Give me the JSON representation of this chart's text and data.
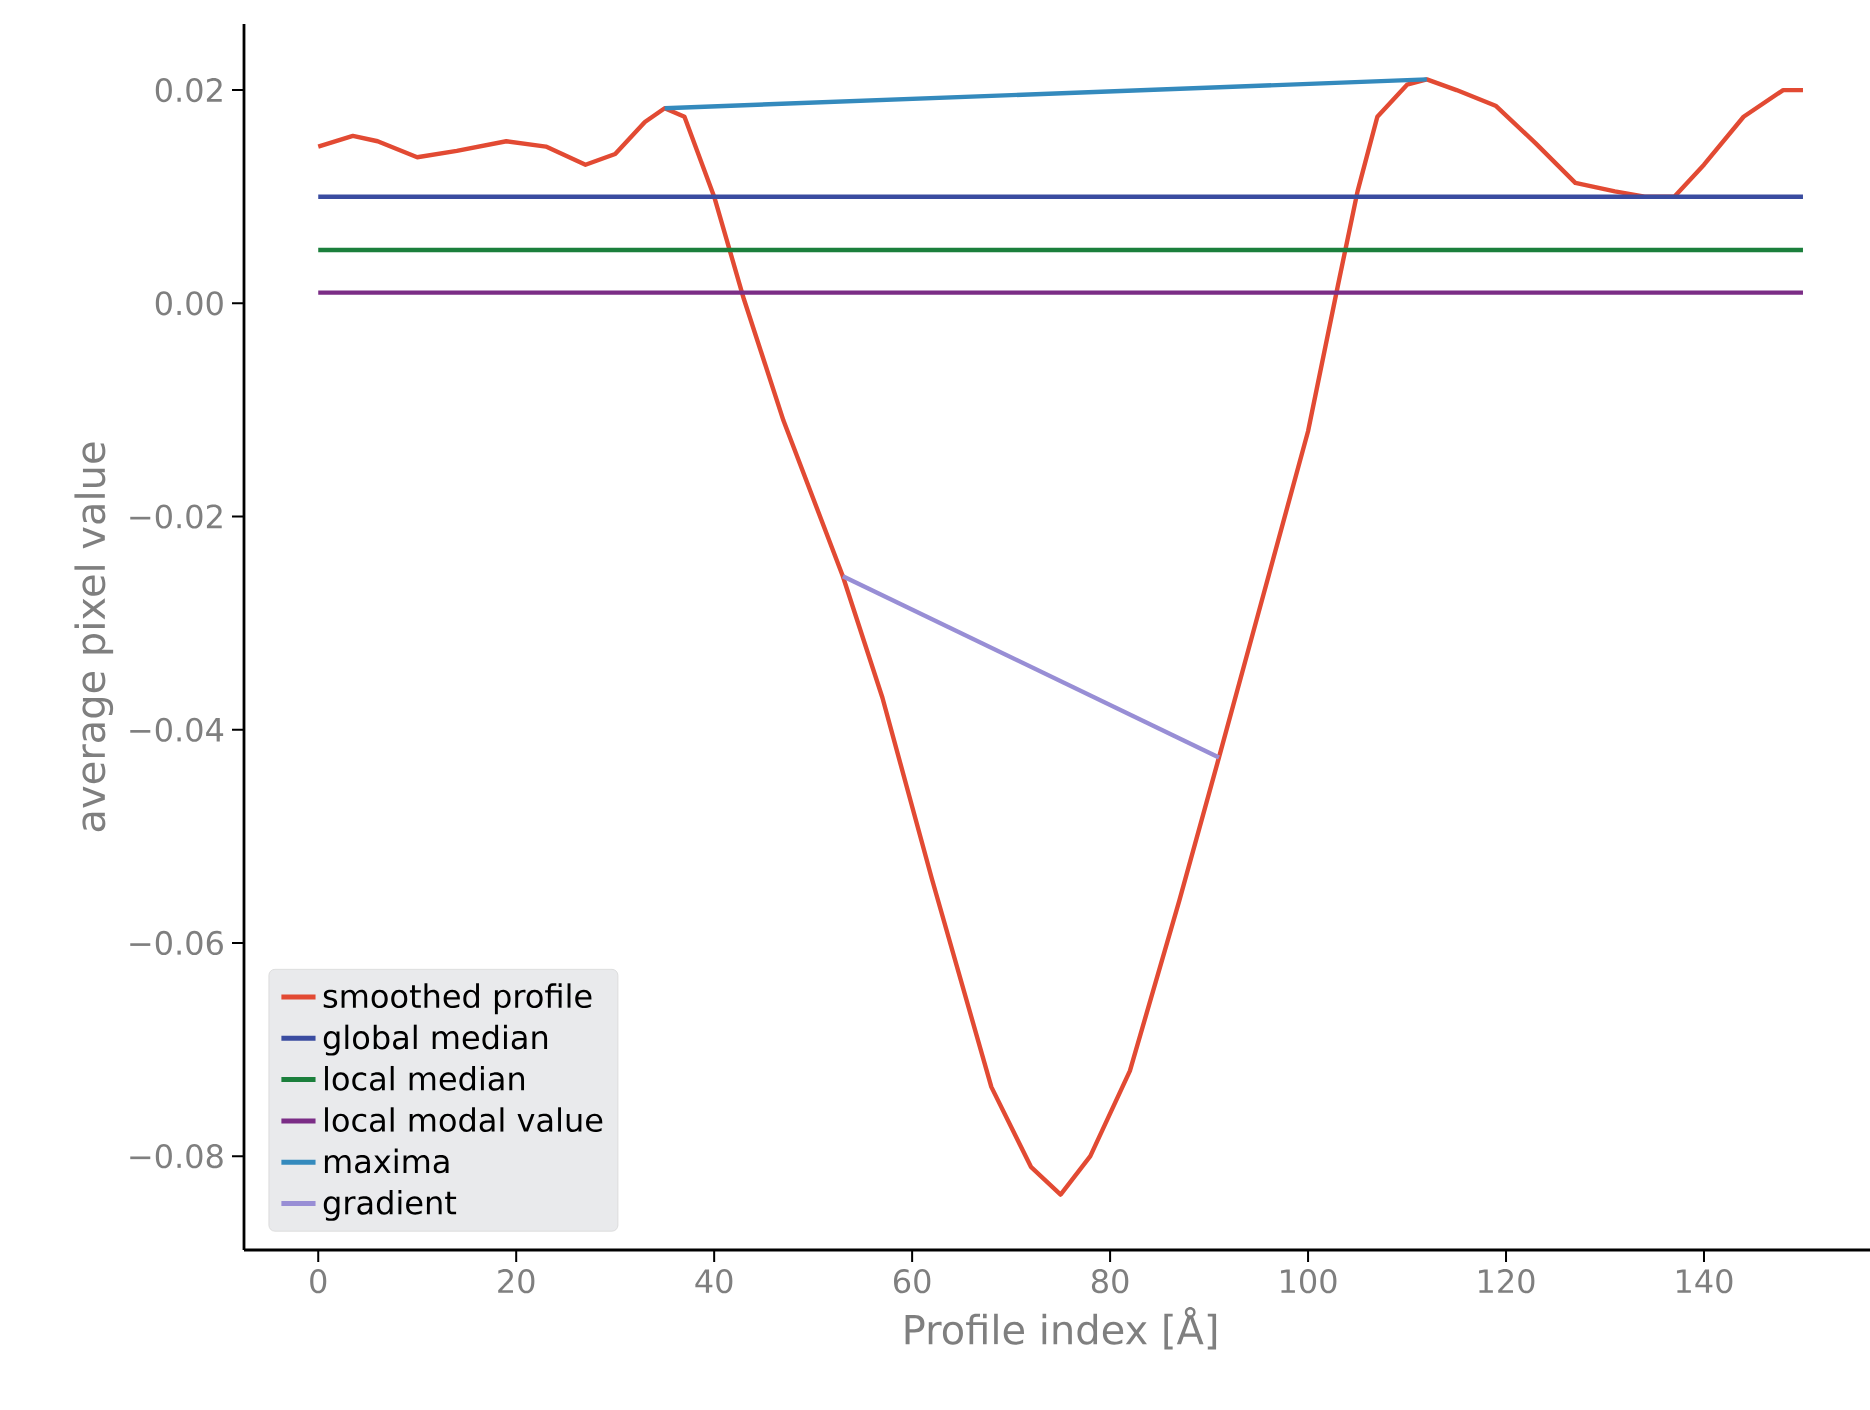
{
  "chart_data": {
    "type": "line",
    "xlabel": "Profile index [Å]",
    "ylabel": "average pixel value",
    "xlim": [
      -7.5,
      157.5
    ],
    "ylim": [
      -0.0888,
      0.0262
    ],
    "xticks": [
      0,
      20,
      40,
      60,
      80,
      100,
      120,
      140
    ],
    "yticks": [
      {
        "value": -0.08,
        "label": "−0.08"
      },
      {
        "value": -0.06,
        "label": "−0.06"
      },
      {
        "value": -0.04,
        "label": "−0.04"
      },
      {
        "value": -0.02,
        "label": "−0.02"
      },
      {
        "value": 0.0,
        "label": "0.00"
      },
      {
        "value": 0.02,
        "label": "0.02"
      }
    ],
    "legend": "bottom left",
    "series": [
      {
        "name": "smoothed profile",
        "color": "#e24a33",
        "x": [
          0,
          3.5,
          6,
          10,
          14,
          19,
          23,
          27,
          30,
          33,
          35,
          37,
          40,
          43,
          47,
          53,
          57,
          62,
          68,
          72,
          75,
          78,
          82,
          87,
          91,
          95,
          100,
          103,
          105,
          107,
          110,
          112,
          115,
          119,
          123,
          127,
          131,
          134,
          137,
          140,
          144,
          148,
          150
        ],
        "values": [
          0.0147,
          0.0157,
          0.0152,
          0.0137,
          0.0143,
          0.0152,
          0.0147,
          0.013,
          0.014,
          0.017,
          0.0183,
          0.0175,
          0.01,
          0.0004,
          -0.011,
          -0.0256,
          -0.037,
          -0.054,
          -0.0735,
          -0.081,
          -0.0836,
          -0.08,
          -0.072,
          -0.056,
          -0.0426,
          -0.029,
          -0.012,
          0.0016,
          0.0105,
          0.0175,
          0.0205,
          0.021,
          0.02,
          0.0185,
          0.015,
          0.0113,
          0.0105,
          0.01,
          0.01,
          0.013,
          0.0175,
          0.02,
          0.02
        ]
      },
      {
        "name": "global median",
        "color": "#3a4ca0",
        "x": [
          0,
          150
        ],
        "values": [
          0.01,
          0.01
        ]
      },
      {
        "name": "local median",
        "color": "#1b7f3c",
        "x": [
          0,
          150
        ],
        "values": [
          0.005,
          0.005
        ]
      },
      {
        "name": "local modal value",
        "color": "#7b2d86",
        "x": [
          0,
          150
        ],
        "values": [
          0.001,
          0.001
        ]
      },
      {
        "name": "maxima",
        "color": "#348abd",
        "x": [
          35,
          112
        ],
        "values": [
          0.0183,
          0.021
        ]
      },
      {
        "name": "gradient",
        "color": "#988ed5",
        "x": [
          53,
          91
        ],
        "values": [
          -0.0256,
          -0.0426
        ]
      }
    ]
  }
}
